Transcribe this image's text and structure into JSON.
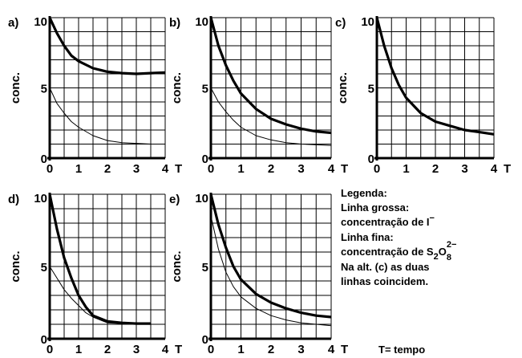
{
  "chart_data": [
    {
      "panel": "a)",
      "type": "line",
      "ylabel": "conc.",
      "xlabel": "T",
      "xlim": [
        0,
        4
      ],
      "ylim": [
        0,
        10
      ],
      "xticks": [
        "0",
        "1",
        "2",
        "3",
        "4"
      ],
      "yticks": [
        "0",
        "5",
        "10"
      ],
      "grid": true,
      "series": [
        {
          "weight": "thick",
          "x": [
            0,
            0.25,
            0.5,
            0.75,
            1,
            1.5,
            2,
            2.5,
            3,
            3.5,
            4
          ],
          "y": [
            10,
            8.9,
            8.0,
            7.3,
            6.9,
            6.4,
            6.15,
            6.05,
            6.0,
            6.05,
            6.1
          ]
        },
        {
          "weight": "thin",
          "x": [
            0,
            0.25,
            0.5,
            0.75,
            1,
            1.5,
            2,
            2.5,
            3,
            3.5,
            4
          ],
          "y": [
            5,
            3.9,
            3.2,
            2.6,
            2.2,
            1.6,
            1.25,
            1.1,
            1.05,
            1.0,
            1.0
          ]
        }
      ]
    },
    {
      "panel": "b)",
      "type": "line",
      "ylabel": "conc.",
      "xlabel": "T",
      "xlim": [
        0,
        4
      ],
      "ylim": [
        0,
        10
      ],
      "xticks": [
        "0",
        "1",
        "2",
        "3",
        "4"
      ],
      "yticks": [
        "0",
        "5",
        "10"
      ],
      "grid": true,
      "series": [
        {
          "weight": "thick",
          "x": [
            0,
            0.25,
            0.5,
            0.75,
            1,
            1.5,
            2,
            2.5,
            3,
            3.5,
            4
          ],
          "y": [
            10,
            8.0,
            6.6,
            5.5,
            4.6,
            3.5,
            2.8,
            2.4,
            2.1,
            1.9,
            1.8
          ]
        },
        {
          "weight": "thin",
          "x": [
            0,
            0.25,
            0.5,
            0.75,
            1,
            1.5,
            2,
            2.5,
            3,
            3.5,
            4
          ],
          "y": [
            5,
            4.0,
            3.3,
            2.7,
            2.2,
            1.6,
            1.3,
            1.1,
            1.0,
            0.95,
            0.9
          ]
        }
      ]
    },
    {
      "panel": "c)",
      "type": "line",
      "ylabel": "conc.",
      "xlabel": "T",
      "xlim": [
        0,
        4
      ],
      "ylim": [
        0,
        10
      ],
      "xticks": [
        "0",
        "1",
        "2",
        "3",
        "4"
      ],
      "yticks": [
        "0",
        "5",
        "10"
      ],
      "grid": true,
      "series": [
        {
          "weight": "thick",
          "x": [
            0,
            0.25,
            0.5,
            0.75,
            1,
            1.5,
            2,
            2.5,
            3,
            3.5,
            4
          ],
          "y": [
            10,
            8.0,
            6.4,
            5.2,
            4.3,
            3.2,
            2.6,
            2.3,
            2.0,
            1.85,
            1.7
          ]
        }
      ]
    },
    {
      "panel": "d)",
      "type": "line",
      "ylabel": "conc.",
      "xlabel": "T",
      "xlim": [
        0,
        4
      ],
      "ylim": [
        0,
        10
      ],
      "xticks": [
        "0",
        "1",
        "2",
        "3",
        "4"
      ],
      "yticks": [
        "0",
        "5",
        "10"
      ],
      "grid": true,
      "series": [
        {
          "weight": "thick",
          "x": [
            0,
            0.25,
            0.5,
            0.75,
            1,
            1.25,
            1.5,
            2,
            2.5,
            3,
            3.5
          ],
          "y": [
            10,
            7.6,
            5.6,
            4.2,
            3.0,
            2.2,
            1.6,
            1.2,
            1.1,
            1.05,
            1.05
          ]
        },
        {
          "weight": "thin",
          "x": [
            0,
            0.25,
            0.5,
            0.75,
            1,
            1.25,
            1.5,
            2,
            2.5,
            3,
            3.5
          ],
          "y": [
            5,
            4.2,
            3.4,
            2.8,
            2.3,
            1.8,
            1.5,
            1.1,
            1.05,
            1.0,
            1.0
          ]
        }
      ]
    },
    {
      "panel": "e)",
      "type": "line",
      "ylabel": "conc.",
      "xlabel": "T",
      "xlim": [
        0,
        4
      ],
      "ylim": [
        0,
        10
      ],
      "xticks": [
        "0",
        "1",
        "2",
        "3",
        "4"
      ],
      "yticks": [
        "0",
        "5",
        "10"
      ],
      "grid": true,
      "series": [
        {
          "weight": "thick",
          "x": [
            0,
            0.25,
            0.5,
            0.75,
            1,
            1.5,
            2,
            2.5,
            3,
            3.5,
            4
          ],
          "y": [
            10,
            7.9,
            6.3,
            5.0,
            4.1,
            3.1,
            2.5,
            2.1,
            1.8,
            1.6,
            1.5
          ]
        },
        {
          "weight": "thin",
          "x": [
            0,
            0.25,
            0.5,
            0.75,
            1,
            1.5,
            2,
            2.5,
            3,
            3.5,
            4
          ],
          "y": [
            8.5,
            6.2,
            4.6,
            3.6,
            2.9,
            2.1,
            1.6,
            1.3,
            1.1,
            1.0,
            0.9
          ]
        }
      ]
    }
  ],
  "legend": {
    "title": "Legenda:",
    "thick_label_1": "Linha grossa:",
    "thick_label_2": "concentração de I",
    "thick_sup": "−",
    "thin_label_1": "Linha fina:",
    "thin_label_2_prefix": "concentração de S",
    "thin_sub_2": "2",
    "thin_o": "O",
    "thin_sup": "2−",
    "thin_sub_8": "8",
    "note_1": "Na alt. (c) as duas",
    "note_2": "linhas coincidem."
  },
  "time_note": "T= tempo"
}
